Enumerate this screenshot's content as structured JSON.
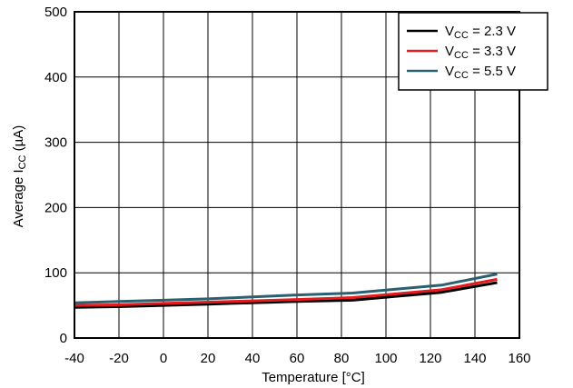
{
  "chart_data": {
    "type": "line",
    "title": "",
    "xlabel": "Temperature [°C]",
    "ylabel": {
      "prefix": "Average I",
      "sub": "CC",
      "suffix": " (µA)"
    },
    "xlim": [
      -40,
      160
    ],
    "ylim": [
      0,
      500
    ],
    "xticks": [
      "-40",
      "-20",
      "0",
      "20",
      "40",
      "60",
      "80",
      "100",
      "120",
      "140",
      "160"
    ],
    "yticks": [
      "0",
      "100",
      "200",
      "300",
      "400",
      "500"
    ],
    "grid": true,
    "legend_position": "top-right",
    "series": [
      {
        "name": {
          "prefix": "V",
          "sub": "CC",
          "suffix": " = 2.3 V"
        },
        "color": "#000000",
        "x": [
          -40,
          -20,
          0,
          20,
          40,
          60,
          85,
          105,
          125,
          150
        ],
        "y": [
          47,
          48,
          50,
          52,
          54,
          56,
          58,
          64,
          70,
          85
        ]
      },
      {
        "name": {
          "prefix": "V",
          "sub": "CC",
          "suffix": " = 3.3 V"
        },
        "color": "#e41a1c",
        "x": [
          -40,
          -20,
          0,
          20,
          40,
          60,
          85,
          105,
          125,
          150
        ],
        "y": [
          50,
          51,
          53,
          55,
          57,
          59,
          62,
          68,
          74,
          90
        ]
      },
      {
        "name": {
          "prefix": "V",
          "sub": "CC",
          "suffix": " = 5.5 V"
        },
        "color": "#2b6070",
        "x": [
          -40,
          -20,
          0,
          20,
          40,
          60,
          85,
          105,
          125,
          150
        ],
        "y": [
          54,
          56,
          58,
          60,
          63,
          66,
          69,
          75,
          81,
          98
        ]
      }
    ]
  }
}
